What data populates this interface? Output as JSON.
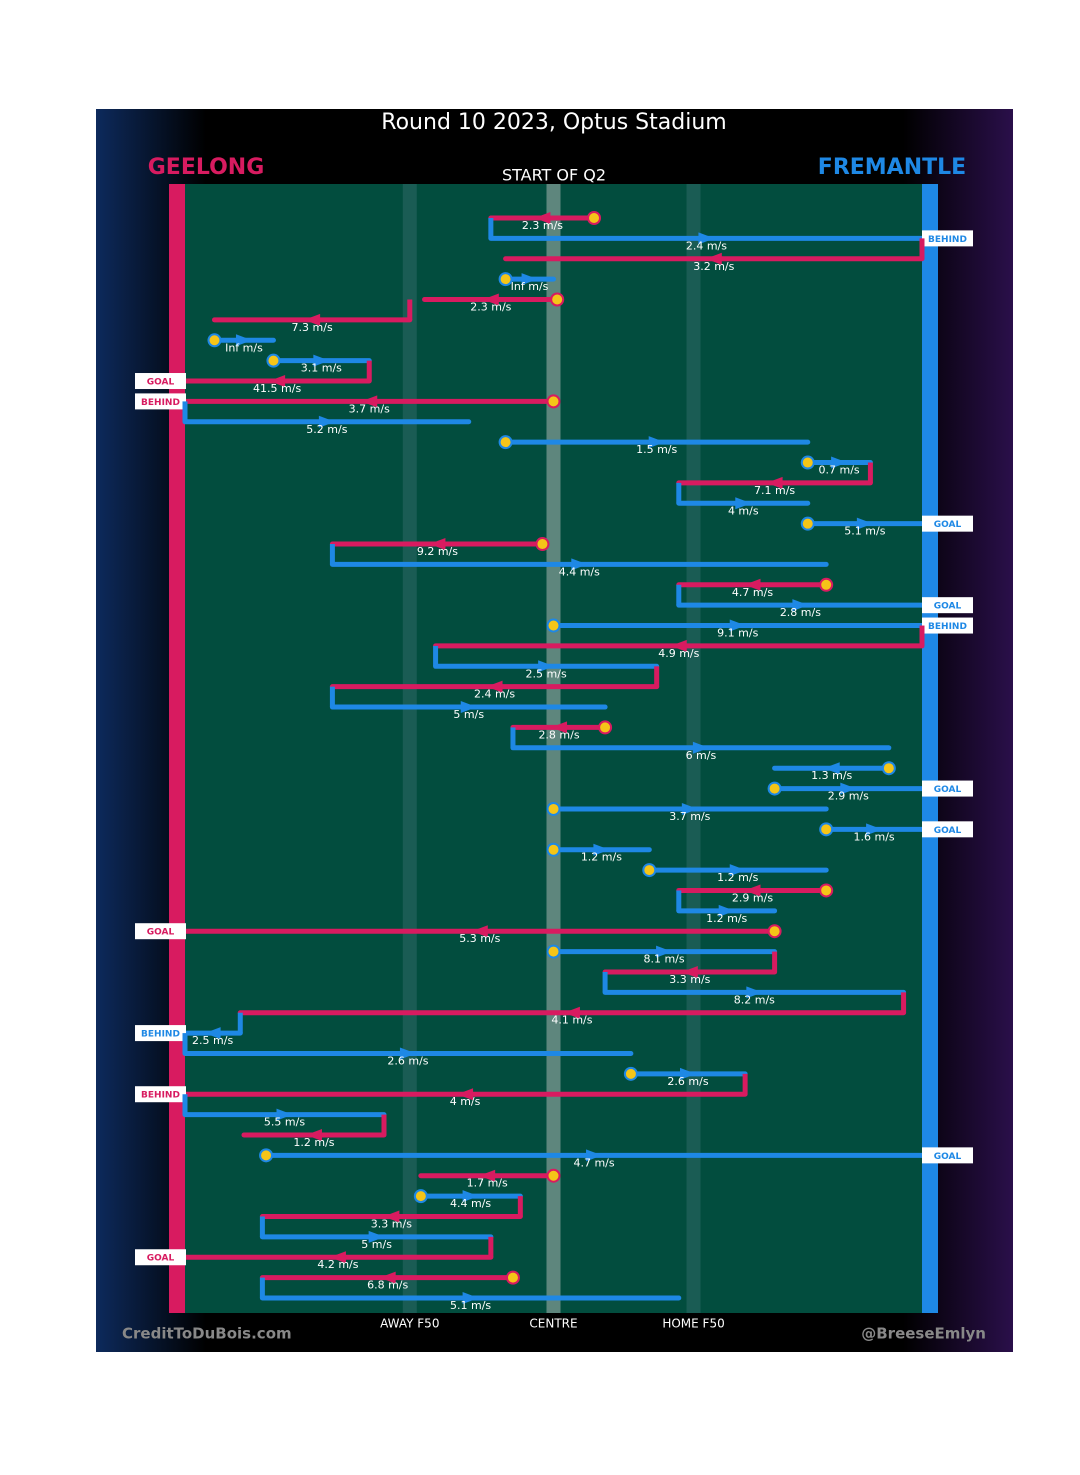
{
  "chart_data": {
    "type": "chain",
    "title": "Round 10 2023, Optus Stadium",
    "subtitle": "START OF Q2",
    "teams": [
      {
        "name": "GEELONG",
        "color": "#d81b60"
      },
      {
        "name": "FREMANTLE",
        "color": "#1e88e5"
      }
    ],
    "credits": [
      "CreditToDuBois.com",
      "@BreeseEmlyn"
    ],
    "xlim": [
      0,
      100
    ],
    "xticks": [
      {
        "value": 30.5,
        "label": "AWAY F50"
      },
      {
        "value": 50,
        "label": "CENTRE"
      },
      {
        "value": 69,
        "label": "HOME F50"
      }
    ],
    "marker_color": "#f5c518",
    "rows": [
      {
        "label": "2.3 m/s",
        "team": 0,
        "from": 55.5,
        "to": 41.5,
        "marker": true
      },
      {
        "label": "2.4 m/s",
        "team": 1,
        "from": 41.5,
        "to": 100,
        "end": "BEHIND"
      },
      {
        "label": "3.2 m/s",
        "team": 0,
        "from": 100,
        "to": 43.5
      },
      {
        "label": "Inf m/s",
        "team": 1,
        "from": 43.5,
        "to": 50,
        "marker": true
      },
      {
        "label": "2.3 m/s",
        "team": 0,
        "from": 50.5,
        "to": 32.5,
        "marker": true
      },
      {
        "label": "7.3 m/s",
        "team": 0,
        "from": 30.5,
        "to": 4
      },
      {
        "label": "Inf m/s",
        "team": 1,
        "from": 4,
        "to": 12,
        "marker": true
      },
      {
        "label": "3.1 m/s",
        "team": 1,
        "from": 12,
        "to": 25,
        "marker": true
      },
      {
        "label": "41.5 m/s",
        "team": 0,
        "from": 25,
        "to": 0,
        "end": "GOAL"
      },
      {
        "label": "3.7 m/s",
        "team": 0,
        "from": 50,
        "to": 0,
        "marker": true,
        "end": "BEHIND"
      },
      {
        "label": "5.2 m/s",
        "team": 1,
        "from": 0,
        "to": 38.5
      },
      {
        "label": "1.5 m/s",
        "team": 1,
        "from": 43.5,
        "to": 84.5,
        "marker": true
      },
      {
        "label": "0.7 m/s",
        "team": 1,
        "from": 84.5,
        "to": 93,
        "marker": true
      },
      {
        "label": "7.1 m/s",
        "team": 0,
        "from": 93,
        "to": 67
      },
      {
        "label": "4 m/s",
        "team": 1,
        "from": 67,
        "to": 84.5
      },
      {
        "label": "5.1 m/s",
        "team": 1,
        "from": 84.5,
        "to": 100,
        "marker": true,
        "end": "GOAL"
      },
      {
        "label": "9.2 m/s",
        "team": 0,
        "from": 48.5,
        "to": 20,
        "marker": true
      },
      {
        "label": "4.4 m/s",
        "team": 1,
        "from": 20,
        "to": 87
      },
      {
        "label": "4.7 m/s",
        "team": 0,
        "from": 87,
        "to": 67,
        "marker": true
      },
      {
        "label": "2.8 m/s",
        "team": 1,
        "from": 67,
        "to": 100,
        "end": "GOAL"
      },
      {
        "label": "9.1 m/s",
        "team": 1,
        "from": 50,
        "to": 100,
        "marker": true,
        "end": "BEHIND"
      },
      {
        "label": "4.9 m/s",
        "team": 0,
        "from": 100,
        "to": 34
      },
      {
        "label": "2.5 m/s",
        "team": 1,
        "from": 34,
        "to": 64
      },
      {
        "label": "2.4 m/s",
        "team": 0,
        "from": 64,
        "to": 20
      },
      {
        "label": "5 m/s",
        "team": 1,
        "from": 20,
        "to": 57
      },
      {
        "label": "2.8 m/s",
        "team": 0,
        "from": 57,
        "to": 44.5,
        "marker": true
      },
      {
        "label": "6 m/s",
        "team": 1,
        "from": 44.5,
        "to": 95.5
      },
      {
        "label": "1.3 m/s",
        "team": 1,
        "from": 95.5,
        "to": 80,
        "marker": true
      },
      {
        "label": "2.9 m/s",
        "team": 1,
        "from": 80,
        "to": 100,
        "marker": true,
        "end": "GOAL"
      },
      {
        "label": "3.7 m/s",
        "team": 1,
        "from": 50,
        "to": 87,
        "marker": true
      },
      {
        "label": "1.6 m/s",
        "team": 1,
        "from": 87,
        "to": 100,
        "marker": true,
        "end": "GOAL"
      },
      {
        "label": "1.2 m/s",
        "team": 1,
        "from": 50,
        "to": 63,
        "marker": true
      },
      {
        "label": "1.2 m/s",
        "team": 1,
        "from": 63,
        "to": 87,
        "marker": true
      },
      {
        "label": "2.9 m/s",
        "team": 0,
        "from": 87,
        "to": 67,
        "marker": true
      },
      {
        "label": "1.2 m/s",
        "team": 1,
        "from": 67,
        "to": 80
      },
      {
        "label": "5.3 m/s",
        "team": 0,
        "from": 80,
        "to": 0,
        "marker": true,
        "end": "GOAL"
      },
      {
        "label": "8.1 m/s",
        "team": 1,
        "from": 50,
        "to": 80,
        "marker": true
      },
      {
        "label": "3.3 m/s",
        "team": 0,
        "from": 80,
        "to": 57
      },
      {
        "label": "8.2 m/s",
        "team": 1,
        "from": 57,
        "to": 97.5
      },
      {
        "label": "4.1 m/s",
        "team": 0,
        "from": 97.5,
        "to": 7.5
      },
      {
        "label": "2.5 m/s",
        "team": 1,
        "from": 7.5,
        "to": 0,
        "end": "BEHIND"
      },
      {
        "label": "2.6 m/s",
        "team": 1,
        "from": 0,
        "to": 60.5
      },
      {
        "label": "2.6 m/s",
        "team": 1,
        "from": 60.5,
        "to": 76,
        "marker": true
      },
      {
        "label": "4 m/s",
        "team": 0,
        "from": 76,
        "to": 0,
        "end": "BEHIND"
      },
      {
        "label": "5.5 m/s",
        "team": 1,
        "from": 0,
        "to": 27
      },
      {
        "label": "1.2 m/s",
        "team": 0,
        "from": 27,
        "to": 8
      },
      {
        "label": "4.7 m/s",
        "team": 1,
        "from": 11,
        "to": 100,
        "marker": true,
        "end": "GOAL"
      },
      {
        "label": "1.7 m/s",
        "team": 0,
        "from": 50,
        "to": 32,
        "marker": true
      },
      {
        "label": "4.4 m/s",
        "team": 1,
        "from": 32,
        "to": 45.5,
        "marker": true
      },
      {
        "label": "3.3 m/s",
        "team": 0,
        "from": 45.5,
        "to": 10.5
      },
      {
        "label": "5 m/s",
        "team": 1,
        "from": 10.5,
        "to": 41.5
      },
      {
        "label": "4.2 m/s",
        "team": 0,
        "from": 41.5,
        "to": 0,
        "end": "GOAL"
      },
      {
        "label": "6.8 m/s",
        "team": 0,
        "from": 44.5,
        "to": 10.5,
        "marker": true
      },
      {
        "label": "5.1 m/s",
        "team": 1,
        "from": 10.5,
        "to": 67
      }
    ]
  }
}
